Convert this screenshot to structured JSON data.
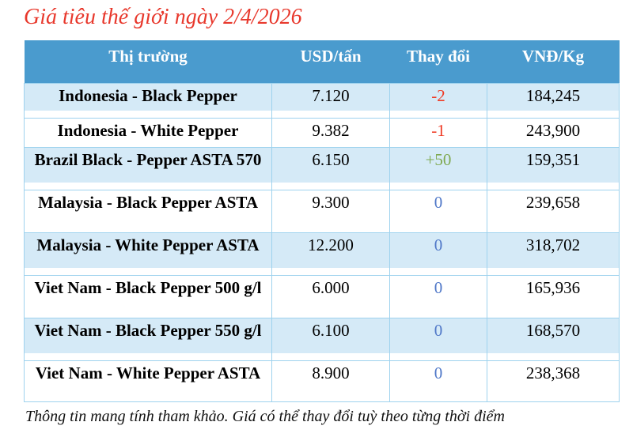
{
  "page": {
    "title": "Giá tiêu thế giới ngày 2/4/2026",
    "footnote": "Thông tin mang tính tham khảo. Giá có thể thay đổi tuỳ theo từng thời điểm"
  },
  "table": {
    "headers": [
      "Thị trường",
      "USD/tấn",
      "Thay đổi",
      "VNĐ/Kg"
    ],
    "rows": [
      {
        "market": "Indonesia - Black Pepper",
        "usd": "7.120",
        "change": "-2",
        "change_type": "down",
        "vnd": "184,245"
      },
      {
        "market": "Indonesia - White Pepper",
        "usd": "9.382",
        "change": "-1",
        "change_type": "down",
        "vnd": "243,900"
      },
      {
        "market": "Brazil Black - Pepper ASTA 570",
        "usd": "6.150",
        "change": "+50",
        "change_type": "up",
        "vnd": "159,351"
      },
      {
        "market": "Malaysia - Black Pepper ASTA",
        "usd": "9.300",
        "change": "0",
        "change_type": "zero",
        "vnd": "239,658"
      },
      {
        "market": "Malaysia - White Pepper ASTA",
        "usd": "12.200",
        "change": "0",
        "change_type": "zero",
        "vnd": "318,702"
      },
      {
        "market": "Viet Nam - Black Pepper 500 g/l",
        "usd": "6.000",
        "change": "0",
        "change_type": "zero",
        "vnd": "165,936"
      },
      {
        "market": "Viet Nam - Black Pepper 550 g/l",
        "usd": "6.100",
        "change": "0",
        "change_type": "zero",
        "vnd": "168,570"
      },
      {
        "market": "Viet Nam - White Pepper ASTA",
        "usd": "8.900",
        "change": "0",
        "change_type": "zero",
        "vnd": "238,368"
      }
    ]
  },
  "colors": {
    "header_bg": "#4a9bce",
    "header_text": "#ffffff",
    "row_shade": "#d5eaf7",
    "table_border": "#9ed2ee",
    "title_red": "#e8382c",
    "change_down": "#ef3b25",
    "change_up": "#7fa950",
    "change_zero": "#5078c8"
  }
}
